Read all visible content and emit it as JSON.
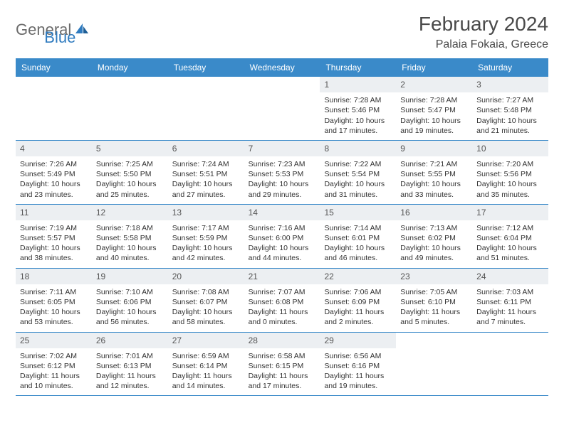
{
  "brand": {
    "part1": "General",
    "part2": "Blue"
  },
  "title": "February 2024",
  "location": "Palaia Fokaia, Greece",
  "header_bg": "#3a8ac9",
  "daynum_bg": "#eceff2",
  "days_of_week": [
    "Sunday",
    "Monday",
    "Tuesday",
    "Wednesday",
    "Thursday",
    "Friday",
    "Saturday"
  ],
  "weeks": [
    [
      {
        "n": "",
        "sunrise": "",
        "sunset": "",
        "daylight": ""
      },
      {
        "n": "",
        "sunrise": "",
        "sunset": "",
        "daylight": ""
      },
      {
        "n": "",
        "sunrise": "",
        "sunset": "",
        "daylight": ""
      },
      {
        "n": "",
        "sunrise": "",
        "sunset": "",
        "daylight": ""
      },
      {
        "n": "1",
        "sunrise": "Sunrise: 7:28 AM",
        "sunset": "Sunset: 5:46 PM",
        "daylight": "Daylight: 10 hours and 17 minutes."
      },
      {
        "n": "2",
        "sunrise": "Sunrise: 7:28 AM",
        "sunset": "Sunset: 5:47 PM",
        "daylight": "Daylight: 10 hours and 19 minutes."
      },
      {
        "n": "3",
        "sunrise": "Sunrise: 7:27 AM",
        "sunset": "Sunset: 5:48 PM",
        "daylight": "Daylight: 10 hours and 21 minutes."
      }
    ],
    [
      {
        "n": "4",
        "sunrise": "Sunrise: 7:26 AM",
        "sunset": "Sunset: 5:49 PM",
        "daylight": "Daylight: 10 hours and 23 minutes."
      },
      {
        "n": "5",
        "sunrise": "Sunrise: 7:25 AM",
        "sunset": "Sunset: 5:50 PM",
        "daylight": "Daylight: 10 hours and 25 minutes."
      },
      {
        "n": "6",
        "sunrise": "Sunrise: 7:24 AM",
        "sunset": "Sunset: 5:51 PM",
        "daylight": "Daylight: 10 hours and 27 minutes."
      },
      {
        "n": "7",
        "sunrise": "Sunrise: 7:23 AM",
        "sunset": "Sunset: 5:53 PM",
        "daylight": "Daylight: 10 hours and 29 minutes."
      },
      {
        "n": "8",
        "sunrise": "Sunrise: 7:22 AM",
        "sunset": "Sunset: 5:54 PM",
        "daylight": "Daylight: 10 hours and 31 minutes."
      },
      {
        "n": "9",
        "sunrise": "Sunrise: 7:21 AM",
        "sunset": "Sunset: 5:55 PM",
        "daylight": "Daylight: 10 hours and 33 minutes."
      },
      {
        "n": "10",
        "sunrise": "Sunrise: 7:20 AM",
        "sunset": "Sunset: 5:56 PM",
        "daylight": "Daylight: 10 hours and 35 minutes."
      }
    ],
    [
      {
        "n": "11",
        "sunrise": "Sunrise: 7:19 AM",
        "sunset": "Sunset: 5:57 PM",
        "daylight": "Daylight: 10 hours and 38 minutes."
      },
      {
        "n": "12",
        "sunrise": "Sunrise: 7:18 AM",
        "sunset": "Sunset: 5:58 PM",
        "daylight": "Daylight: 10 hours and 40 minutes."
      },
      {
        "n": "13",
        "sunrise": "Sunrise: 7:17 AM",
        "sunset": "Sunset: 5:59 PM",
        "daylight": "Daylight: 10 hours and 42 minutes."
      },
      {
        "n": "14",
        "sunrise": "Sunrise: 7:16 AM",
        "sunset": "Sunset: 6:00 PM",
        "daylight": "Daylight: 10 hours and 44 minutes."
      },
      {
        "n": "15",
        "sunrise": "Sunrise: 7:14 AM",
        "sunset": "Sunset: 6:01 PM",
        "daylight": "Daylight: 10 hours and 46 minutes."
      },
      {
        "n": "16",
        "sunrise": "Sunrise: 7:13 AM",
        "sunset": "Sunset: 6:02 PM",
        "daylight": "Daylight: 10 hours and 49 minutes."
      },
      {
        "n": "17",
        "sunrise": "Sunrise: 7:12 AM",
        "sunset": "Sunset: 6:04 PM",
        "daylight": "Daylight: 10 hours and 51 minutes."
      }
    ],
    [
      {
        "n": "18",
        "sunrise": "Sunrise: 7:11 AM",
        "sunset": "Sunset: 6:05 PM",
        "daylight": "Daylight: 10 hours and 53 minutes."
      },
      {
        "n": "19",
        "sunrise": "Sunrise: 7:10 AM",
        "sunset": "Sunset: 6:06 PM",
        "daylight": "Daylight: 10 hours and 56 minutes."
      },
      {
        "n": "20",
        "sunrise": "Sunrise: 7:08 AM",
        "sunset": "Sunset: 6:07 PM",
        "daylight": "Daylight: 10 hours and 58 minutes."
      },
      {
        "n": "21",
        "sunrise": "Sunrise: 7:07 AM",
        "sunset": "Sunset: 6:08 PM",
        "daylight": "Daylight: 11 hours and 0 minutes."
      },
      {
        "n": "22",
        "sunrise": "Sunrise: 7:06 AM",
        "sunset": "Sunset: 6:09 PM",
        "daylight": "Daylight: 11 hours and 2 minutes."
      },
      {
        "n": "23",
        "sunrise": "Sunrise: 7:05 AM",
        "sunset": "Sunset: 6:10 PM",
        "daylight": "Daylight: 11 hours and 5 minutes."
      },
      {
        "n": "24",
        "sunrise": "Sunrise: 7:03 AM",
        "sunset": "Sunset: 6:11 PM",
        "daylight": "Daylight: 11 hours and 7 minutes."
      }
    ],
    [
      {
        "n": "25",
        "sunrise": "Sunrise: 7:02 AM",
        "sunset": "Sunset: 6:12 PM",
        "daylight": "Daylight: 11 hours and 10 minutes."
      },
      {
        "n": "26",
        "sunrise": "Sunrise: 7:01 AM",
        "sunset": "Sunset: 6:13 PM",
        "daylight": "Daylight: 11 hours and 12 minutes."
      },
      {
        "n": "27",
        "sunrise": "Sunrise: 6:59 AM",
        "sunset": "Sunset: 6:14 PM",
        "daylight": "Daylight: 11 hours and 14 minutes."
      },
      {
        "n": "28",
        "sunrise": "Sunrise: 6:58 AM",
        "sunset": "Sunset: 6:15 PM",
        "daylight": "Daylight: 11 hours and 17 minutes."
      },
      {
        "n": "29",
        "sunrise": "Sunrise: 6:56 AM",
        "sunset": "Sunset: 6:16 PM",
        "daylight": "Daylight: 11 hours and 19 minutes."
      },
      {
        "n": "",
        "sunrise": "",
        "sunset": "",
        "daylight": ""
      },
      {
        "n": "",
        "sunrise": "",
        "sunset": "",
        "daylight": ""
      }
    ]
  ]
}
